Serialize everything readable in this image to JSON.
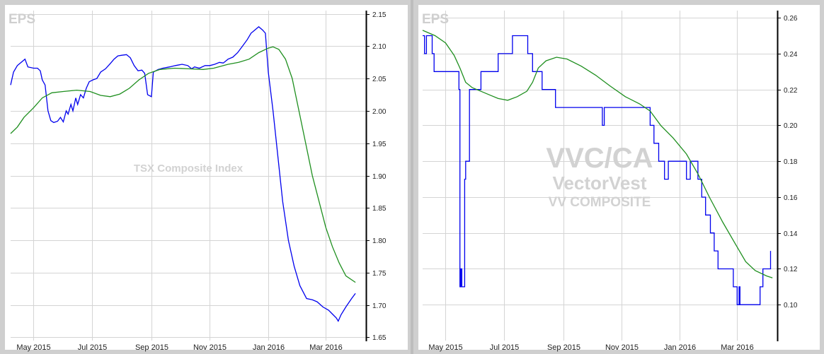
{
  "chart_data": [
    {
      "type": "line",
      "title": "EPS",
      "watermark": "TSX Composite Index",
      "x_ticks": [
        "May 2015",
        "Jul 2015",
        "Sep 2015",
        "Nov 2015",
        "Jan 2016",
        "Mar 2016"
      ],
      "x_range": [
        "2015-04-07",
        "2016-04-12"
      ],
      "y_ticks": [
        "1.65",
        "1.70",
        "1.75",
        "1.80",
        "1.85",
        "1.90",
        "1.95",
        "2.00",
        "2.05",
        "2.10",
        "2.15"
      ],
      "ylim": [
        1.645,
        2.155
      ],
      "axis_position": "right",
      "grid": true,
      "colors": {
        "eps": "#0000ee",
        "moving_average": "#1f8f1f"
      },
      "series": [
        {
          "points": [
            [
              "2015-04-07",
              2.04
            ],
            [
              "2015-04-10",
              2.06
            ],
            [
              "2015-04-14",
              2.07
            ],
            [
              "2015-04-18",
              2.075
            ],
            [
              "2015-04-22",
              2.08
            ],
            [
              "2015-04-25",
              2.068
            ],
            [
              "2015-05-01",
              2.066
            ],
            [
              "2015-05-05",
              2.066
            ],
            [
              "2015-05-08",
              2.062
            ],
            [
              "2015-05-10",
              2.048
            ],
            [
              "2015-05-13",
              2.04
            ],
            [
              "2015-05-16",
              2.0
            ],
            [
              "2015-05-19",
              1.985
            ],
            [
              "2015-05-22",
              1.982
            ],
            [
              "2015-05-26",
              1.984
            ],
            [
              "2015-05-29",
              1.99
            ],
            [
              "2015-06-01",
              1.983
            ],
            [
              "2015-06-04",
              2.0
            ],
            [
              "2015-06-06",
              1.995
            ],
            [
              "2015-06-09",
              2.01
            ],
            [
              "2015-06-11",
              2.0
            ],
            [
              "2015-06-14",
              2.02
            ],
            [
              "2015-06-16",
              2.01
            ],
            [
              "2015-06-19",
              2.025
            ],
            [
              "2015-06-22",
              2.02
            ],
            [
              "2015-06-25",
              2.035
            ],
            [
              "2015-06-28",
              2.045
            ],
            [
              "2015-07-02",
              2.048
            ],
            [
              "2015-07-06",
              2.05
            ],
            [
              "2015-07-10",
              2.06
            ],
            [
              "2015-07-15",
              2.065
            ],
            [
              "2015-07-20",
              2.073
            ],
            [
              "2015-07-24",
              2.08
            ],
            [
              "2015-07-28",
              2.085
            ],
            [
              "2015-08-01",
              2.086
            ],
            [
              "2015-08-06",
              2.087
            ],
            [
              "2015-08-10",
              2.082
            ],
            [
              "2015-08-14",
              2.07
            ],
            [
              "2015-08-18",
              2.062
            ],
            [
              "2015-08-22",
              2.063
            ],
            [
              "2015-08-25",
              2.058
            ],
            [
              "2015-08-28",
              2.025
            ],
            [
              "2015-09-01",
              2.022
            ],
            [
              "2015-09-03",
              2.06
            ],
            [
              "2015-09-08",
              2.064
            ],
            [
              "2015-09-13",
              2.066
            ],
            [
              "2015-09-20",
              2.068
            ],
            [
              "2015-09-26",
              2.07
            ],
            [
              "2015-10-03",
              2.072
            ],
            [
              "2015-10-09",
              2.07
            ],
            [
              "2015-10-13",
              2.065
            ],
            [
              "2015-10-16",
              2.068
            ],
            [
              "2015-10-21",
              2.066
            ],
            [
              "2015-10-27",
              2.07
            ],
            [
              "2015-11-01",
              2.07
            ],
            [
              "2015-11-06",
              2.072
            ],
            [
              "2015-11-11",
              2.075
            ],
            [
              "2015-11-15",
              2.074
            ],
            [
              "2015-11-20",
              2.08
            ],
            [
              "2015-11-25",
              2.083
            ],
            [
              "2015-11-30",
              2.09
            ],
            [
              "2015-12-05",
              2.1
            ],
            [
              "2015-12-10",
              2.11
            ],
            [
              "2015-12-14",
              2.12
            ],
            [
              "2015-12-18",
              2.125
            ],
            [
              "2015-12-22",
              2.13
            ],
            [
              "2015-12-26",
              2.125
            ],
            [
              "2015-12-29",
              2.12
            ],
            [
              "2016-01-01",
              2.06
            ],
            [
              "2016-01-06",
              2.0
            ],
            [
              "2016-01-11",
              1.93
            ],
            [
              "2016-01-16",
              1.86
            ],
            [
              "2016-01-22",
              1.8
            ],
            [
              "2016-01-28",
              1.76
            ],
            [
              "2016-02-03",
              1.73
            ],
            [
              "2016-02-10",
              1.71
            ],
            [
              "2016-02-16",
              1.708
            ],
            [
              "2016-02-21",
              1.705
            ],
            [
              "2016-02-27",
              1.697
            ],
            [
              "2016-03-04",
              1.692
            ],
            [
              "2016-03-08",
              1.686
            ],
            [
              "2016-03-12",
              1.68
            ],
            [
              "2016-03-14",
              1.675
            ],
            [
              "2016-03-17",
              1.685
            ],
            [
              "2016-03-22",
              1.697
            ],
            [
              "2016-03-28",
              1.71
            ],
            [
              "2016-04-01",
              1.718
            ]
          ]
        },
        {
          "points": [
            [
              "2015-04-07",
              1.965
            ],
            [
              "2015-04-14",
              1.975
            ],
            [
              "2015-04-21",
              1.99
            ],
            [
              "2015-05-01",
              2.005
            ],
            [
              "2015-05-10",
              2.02
            ],
            [
              "2015-05-20",
              2.028
            ],
            [
              "2015-06-01",
              2.03
            ],
            [
              "2015-06-15",
              2.032
            ],
            [
              "2015-06-29",
              2.03
            ],
            [
              "2015-07-10",
              2.024
            ],
            [
              "2015-07-20",
              2.022
            ],
            [
              "2015-07-30",
              2.026
            ],
            [
              "2015-08-09",
              2.035
            ],
            [
              "2015-08-19",
              2.048
            ],
            [
              "2015-08-29",
              2.058
            ],
            [
              "2015-09-10",
              2.064
            ],
            [
              "2015-09-25",
              2.066
            ],
            [
              "2015-10-10",
              2.065
            ],
            [
              "2015-10-25",
              2.064
            ],
            [
              "2015-11-05",
              2.066
            ],
            [
              "2015-11-20",
              2.072
            ],
            [
              "2015-12-01",
              2.075
            ],
            [
              "2015-12-12",
              2.08
            ],
            [
              "2015-12-22",
              2.09
            ],
            [
              "2016-01-01",
              2.097
            ],
            [
              "2016-01-06",
              2.099
            ],
            [
              "2016-01-12",
              2.095
            ],
            [
              "2016-01-19",
              2.08
            ],
            [
              "2016-01-26",
              2.05
            ],
            [
              "2016-02-02",
              2.0
            ],
            [
              "2016-02-09",
              1.95
            ],
            [
              "2016-02-16",
              1.9
            ],
            [
              "2016-02-23",
              1.86
            ],
            [
              "2016-03-01",
              1.82
            ],
            [
              "2016-03-08",
              1.79
            ],
            [
              "2016-03-15",
              1.765
            ],
            [
              "2016-03-22",
              1.745
            ],
            [
              "2016-04-01",
              1.735
            ]
          ]
        }
      ]
    },
    {
      "type": "line",
      "title": "EPS",
      "watermark": [
        "VVC/CA",
        "VectorVest",
        "VV COMPOSITE"
      ],
      "x_ticks": [
        "May 2015",
        "Jul 2015",
        "Sep 2015",
        "Nov 2015",
        "Jan 2016",
        "Mar 2016"
      ],
      "x_range": [
        "2015-04-07",
        "2016-04-12"
      ],
      "y_ticks": [
        "0.10",
        "0.12",
        "0.14",
        "0.16",
        "0.18",
        "0.20",
        "0.22",
        "0.24",
        "0.26"
      ],
      "ylim": [
        0.08,
        0.264
      ],
      "axis_position": "right",
      "grid": true,
      "colors": {
        "eps": "#0000ee",
        "moving_average": "#1f8f1f"
      },
      "series": [
        {
          "step": true,
          "points": [
            [
              "2015-04-07",
              0.25
            ],
            [
              "2015-04-09",
              0.24
            ],
            [
              "2015-04-11",
              0.25
            ],
            [
              "2015-04-17",
              0.24
            ],
            [
              "2015-04-19",
              0.23
            ],
            [
              "2015-05-15",
              0.22
            ],
            [
              "2015-05-16",
              0.11
            ],
            [
              "2015-05-17",
              0.12
            ],
            [
              "2015-05-18",
              0.11
            ],
            [
              "2015-05-21",
              0.17
            ],
            [
              "2015-05-22",
              0.18
            ],
            [
              "2015-05-26",
              0.22
            ],
            [
              "2015-05-29",
              0.22
            ],
            [
              "2015-06-01",
              0.22
            ],
            [
              "2015-06-07",
              0.23
            ],
            [
              "2015-06-25",
              0.24
            ],
            [
              "2015-07-10",
              0.25
            ],
            [
              "2015-07-26",
              0.24
            ],
            [
              "2015-07-31",
              0.23
            ],
            [
              "2015-08-10",
              0.22
            ],
            [
              "2015-08-24",
              0.21
            ],
            [
              "2015-10-11",
              0.21
            ],
            [
              "2015-10-12",
              0.2
            ],
            [
              "2015-10-14",
              0.21
            ],
            [
              "2015-12-01",
              0.2
            ],
            [
              "2015-12-05",
              0.19
            ],
            [
              "2015-12-10",
              0.18
            ],
            [
              "2015-12-16",
              0.17
            ],
            [
              "2015-12-20",
              0.18
            ],
            [
              "2016-01-08",
              0.17
            ],
            [
              "2016-01-12",
              0.18
            ],
            [
              "2016-01-20",
              0.17
            ],
            [
              "2016-01-24",
              0.16
            ],
            [
              "2016-01-28",
              0.15
            ],
            [
              "2016-02-02",
              0.14
            ],
            [
              "2016-02-06",
              0.13
            ],
            [
              "2016-02-10",
              0.12
            ],
            [
              "2016-02-26",
              0.11
            ],
            [
              "2016-03-01",
              0.1
            ],
            [
              "2016-03-03",
              0.11
            ],
            [
              "2016-03-04",
              0.1
            ],
            [
              "2016-03-25",
              0.11
            ],
            [
              "2016-03-28",
              0.12
            ],
            [
              "2016-04-05",
              0.13
            ]
          ]
        },
        {
          "points": [
            [
              "2015-04-07",
              0.253
            ],
            [
              "2015-04-20",
              0.25
            ],
            [
              "2015-05-01",
              0.246
            ],
            [
              "2015-05-10",
              0.239
            ],
            [
              "2015-05-16",
              0.232
            ],
            [
              "2015-05-22",
              0.224
            ],
            [
              "2015-05-29",
              0.221
            ],
            [
              "2015-06-07",
              0.219
            ],
            [
              "2015-06-16",
              0.217
            ],
            [
              "2015-06-25",
              0.215
            ],
            [
              "2015-07-05",
              0.214
            ],
            [
              "2015-07-15",
              0.216
            ],
            [
              "2015-07-25",
              0.219
            ],
            [
              "2015-07-31",
              0.224
            ],
            [
              "2015-08-06",
              0.232
            ],
            [
              "2015-08-14",
              0.236
            ],
            [
              "2015-08-25",
              0.238
            ],
            [
              "2015-09-05",
              0.237
            ],
            [
              "2015-09-20",
              0.233
            ],
            [
              "2015-10-05",
              0.228
            ],
            [
              "2015-10-20",
              0.222
            ],
            [
              "2015-11-05",
              0.216
            ],
            [
              "2015-11-20",
              0.212
            ],
            [
              "2015-12-01",
              0.208
            ],
            [
              "2015-12-12",
              0.2
            ],
            [
              "2015-12-25",
              0.193
            ],
            [
              "2016-01-08",
              0.184
            ],
            [
              "2016-01-20",
              0.173
            ],
            [
              "2016-02-01",
              0.16
            ],
            [
              "2016-02-15",
              0.146
            ],
            [
              "2016-02-28",
              0.134
            ],
            [
              "2016-03-10",
              0.124
            ],
            [
              "2016-03-20",
              0.119
            ],
            [
              "2016-04-01",
              0.116
            ],
            [
              "2016-04-07",
              0.115
            ]
          ]
        }
      ]
    }
  ]
}
